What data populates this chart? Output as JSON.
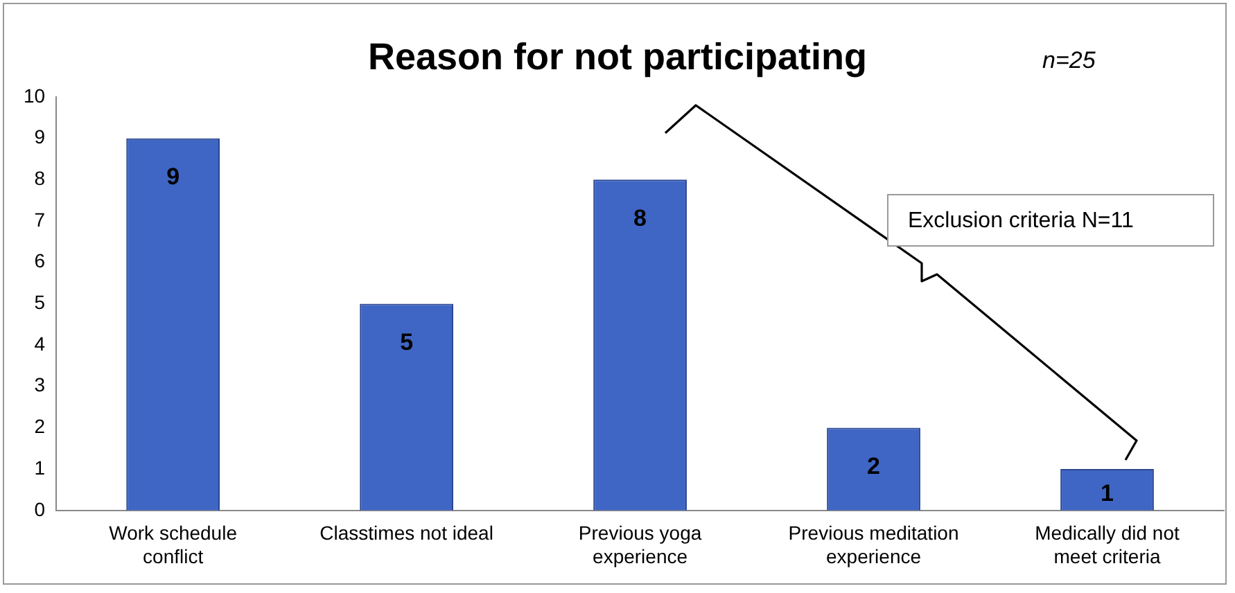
{
  "chart_data": {
    "type": "bar",
    "title": "Reason for not participating",
    "subtitle": "n=25",
    "categories": [
      "Work schedule conflict",
      "Classtimes not ideal",
      "Previous yoga experience",
      "Previous meditation experience",
      "Medically did not meet criteria"
    ],
    "values": [
      9,
      5,
      8,
      2,
      1
    ],
    "color": "#3f66c4",
    "data_labels": true,
    "ylim": [
      0,
      10
    ],
    "yticks": [
      0,
      1,
      2,
      3,
      4,
      5,
      6,
      7,
      8,
      9,
      10
    ],
    "grid": false,
    "legend": false,
    "annotations": [
      "Exclusion criteria N=11"
    ]
  }
}
